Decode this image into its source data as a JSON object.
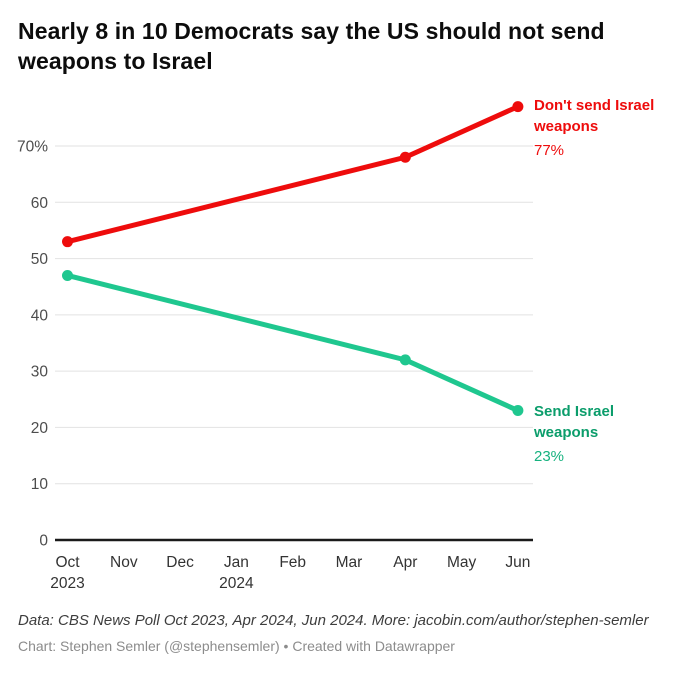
{
  "chart_data": {
    "type": "line",
    "title": "Nearly 8 in 10 Democrats say the US should not send weapons to Israel",
    "xlabel": "",
    "ylabel": "",
    "ylim": [
      0,
      78
    ],
    "y_ticks": [
      0,
      10,
      20,
      30,
      40,
      50,
      60,
      70
    ],
    "y_top_tick_suffix": "%",
    "grid": "horizontal",
    "legend_position": "end-of-line-labels",
    "categories": [
      {
        "id": "Oct 2023",
        "label": "Oct",
        "sublabel": "2023"
      },
      {
        "id": "Nov 2023",
        "label": "Nov",
        "sublabel": ""
      },
      {
        "id": "Dec 2023",
        "label": "Dec",
        "sublabel": ""
      },
      {
        "id": "Jan 2024",
        "label": "Jan",
        "sublabel": "2024"
      },
      {
        "id": "Feb 2024",
        "label": "Feb",
        "sublabel": ""
      },
      {
        "id": "Mar 2024",
        "label": "Mar",
        "sublabel": ""
      },
      {
        "id": "Apr 2024",
        "label": "Apr",
        "sublabel": ""
      },
      {
        "id": "May 2024",
        "label": "May",
        "sublabel": ""
      },
      {
        "id": "Jun 2024",
        "label": "Jun",
        "sublabel": ""
      }
    ],
    "series": [
      {
        "name": "Don't send Israel weapons",
        "color": "#ee0c0c",
        "label_color": "#ee0c0c",
        "value_color": "#ee0c0c",
        "value_label": "77%",
        "points": [
          {
            "x": "Oct 2023",
            "y": 53
          },
          {
            "x": "Apr 2024",
            "y": 68
          },
          {
            "x": "Jun 2024",
            "y": 77
          }
        ]
      },
      {
        "name": "Send Israel weapons",
        "color": "#1fc78f",
        "label_color": "#0b9d6b",
        "value_color": "#16b27f",
        "value_label": "23%",
        "points": [
          {
            "x": "Oct 2023",
            "y": 47
          },
          {
            "x": "Apr 2024",
            "y": 32
          },
          {
            "x": "Jun 2024",
            "y": 23
          }
        ]
      }
    ],
    "colors": {
      "grid": "#e2e2e2",
      "axis": "#1a1a1a",
      "y_tick_text": "#4d4d4d",
      "x_tick_text": "#333333"
    }
  },
  "footer": {
    "source_line": "Data: CBS News Poll Oct 2023, Apr 2024, Jun 2024. More: jacobin.com/author/stephen-semler",
    "byline": "Chart: Stephen Semler (@stephensemler) • Created with Datawrapper"
  }
}
